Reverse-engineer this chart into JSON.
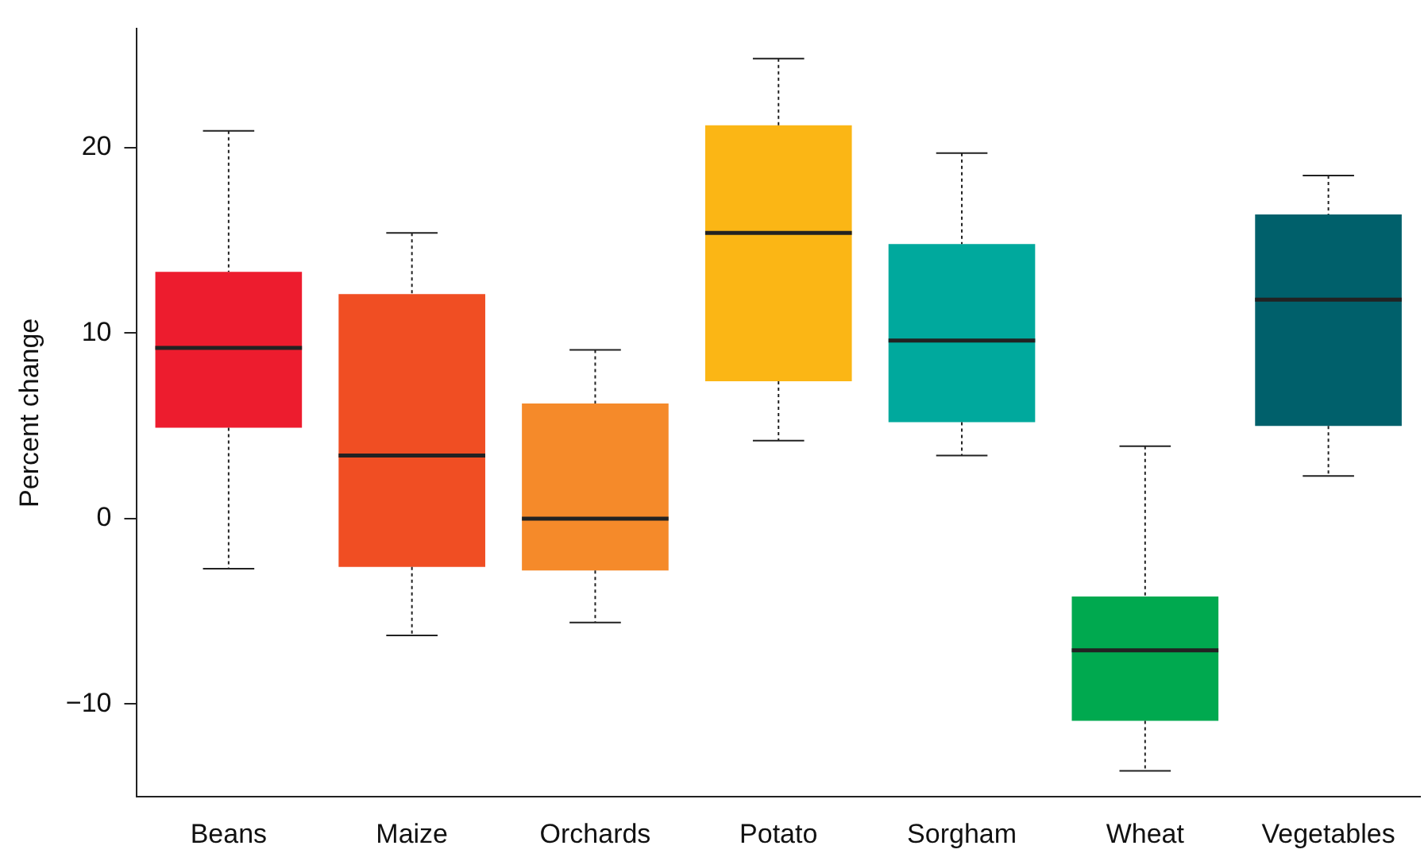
{
  "chart_data": {
    "type": "box",
    "ylabel": "Percent change",
    "categories": [
      "Beans",
      "Maize",
      "Orchards",
      "Potato",
      "Sorgham",
      "Wheat",
      "Vegetables"
    ],
    "colors": [
      "#ed1c2e",
      "#f04e23",
      "#f58a2a",
      "#fbb615",
      "#00a99d",
      "#00a94f",
      "#00606b"
    ],
    "boxes": [
      {
        "low": -2.7,
        "q1": 4.9,
        "median": 9.2,
        "q3": 13.3,
        "high": 20.9
      },
      {
        "low": -6.3,
        "q1": -2.6,
        "median": 3.4,
        "q3": 12.1,
        "high": 15.4
      },
      {
        "low": -5.6,
        "q1": -2.8,
        "median": 0,
        "q3": 6.2,
        "high": 9.1
      },
      {
        "low": 4.2,
        "q1": 7.4,
        "median": 15.4,
        "q3": 21.2,
        "high": 24.8
      },
      {
        "low": 3.4,
        "q1": 5.2,
        "median": 9.6,
        "q3": 14.8,
        "high": 19.7
      },
      {
        "low": -13.6,
        "q1": -10.9,
        "median": -7.1,
        "q3": -4.2,
        "high": 3.9
      },
      {
        "low": 2.3,
        "q1": 5.0,
        "median": 11.8,
        "q3": 16.4,
        "high": 18.5
      }
    ],
    "ylim": [
      -15,
      26.4
    ],
    "yticks": [
      -10,
      0,
      10,
      20
    ],
    "grid": false,
    "legend": false
  }
}
